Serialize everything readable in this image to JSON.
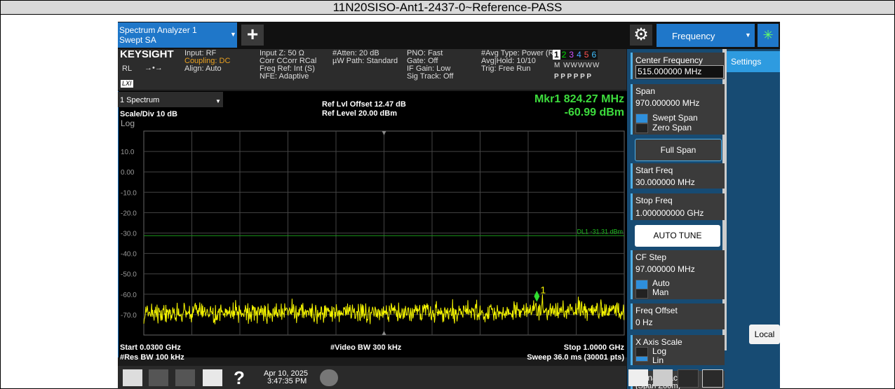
{
  "title": "11N20SISO-Ant1-2437-0~Reference-PASS",
  "top_bar": {
    "tab_line1": "Spectrum Analyzer 1",
    "tab_line2": "Swept SA",
    "menu": "Frequency"
  },
  "info": {
    "brand": "KEYSIGHT",
    "rl": "RL",
    "lxi": "LXI",
    "col1": [
      "Input: RF",
      "Coupling: DC",
      "Align: Auto"
    ],
    "col2": [
      "Input Z: 50 Ω",
      "Corr CCorr RCal",
      "Freq Ref: Int (S)",
      "NFE: Adaptive"
    ],
    "col3": [
      "#Atten: 20 dB",
      "µW Path: Standard"
    ],
    "col4": [
      "PNO: Fast",
      "Gate: Off",
      "IF Gain: Low",
      "Sig Track: Off"
    ],
    "col5": [
      "#Avg Type: Power (RMS)",
      "Avg|Hold: 10/10",
      "Trig: Free Run"
    ],
    "traces": [
      "1",
      "2",
      "3",
      "4",
      "5",
      "6"
    ],
    "trace_types": "M WWWWW",
    "trace_det": "P P P P P P"
  },
  "plot": {
    "window": "1 Spectrum",
    "scale": "Scale/Div 10 dB",
    "log": "Log",
    "ref_offset": "Ref Lvl Offset 12.47 dB",
    "ref_level": "Ref Level 20.00 dBm",
    "marker_freq": "Mkr1  824.27 MHz",
    "marker_amp": "-60.99 dBm",
    "display_line": "DL1 -31.31 dBm",
    "marker_label": "1",
    "y_labels": [
      "10.0",
      "0.00",
      "-10.0",
      "-20.0",
      "-30.0",
      "-40.0",
      "-50.0",
      "-60.0",
      "-70.0"
    ],
    "start": "Start 0.0300 GHz",
    "res_bw": "#Res BW 100 kHz",
    "video_bw": "#Video BW 300 kHz",
    "stop": "Stop 1.0000 GHz",
    "sweep": "Sweep 36.0 ms (30001 pts)"
  },
  "panel": {
    "center_label": "Center Frequency",
    "center_value": "515.000000 MHz",
    "span_label": "Span",
    "span_value": "970.000000 MHz",
    "swept_span": "Swept Span",
    "zero_span": "Zero Span",
    "full_span": "Full Span",
    "start_label": "Start Freq",
    "start_value": "30.000000 MHz",
    "stop_label": "Stop Freq",
    "stop_value": "1.000000000 GHz",
    "auto_tune": "AUTO TUNE",
    "cf_label": "CF Step",
    "cf_value": "97.000000 MHz",
    "auto": "Auto",
    "man": "Man",
    "offset_label": "Freq Offset",
    "offset_value": "0 Hz",
    "xscale_label": "X Axis Scale",
    "log": "Log",
    "lin": "Lin",
    "track_label": "Signal Track",
    "track_sub": "(Span Zoom)"
  },
  "settings_tab": "Settings",
  "local": "Local",
  "taskbar": {
    "date": "Apr 10, 2025",
    "time": "3:47:35 PM"
  }
}
